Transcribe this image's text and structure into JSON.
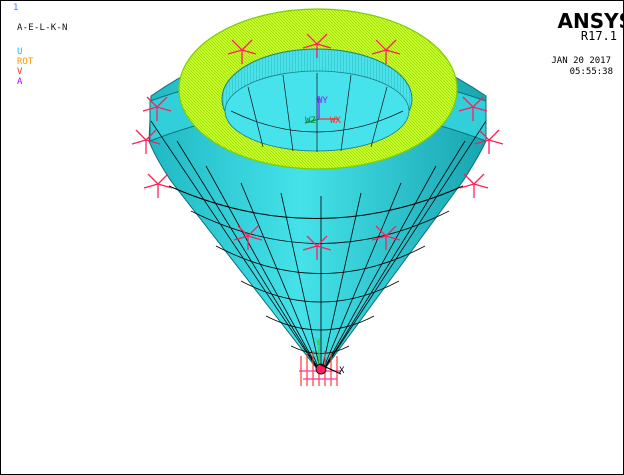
{
  "window": {
    "number": "1",
    "plot_title": "A-E-L-K-N"
  },
  "legend": [
    {
      "label": "U",
      "color": "#00c8ff"
    },
    {
      "label": "ROT",
      "color": "#ff9a00"
    },
    {
      "label": "V",
      "color": "#ff2a2a"
    },
    {
      "label": "A",
      "color": "#b000ff"
    }
  ],
  "brand": {
    "name": "ANSYS",
    "version": "R17.1"
  },
  "timestamp": {
    "date": "JAN 20 2017",
    "time": "05:55:38"
  },
  "triad": {
    "top_y": "WY",
    "top_x": "WX",
    "top_z": "WZ",
    "bottom_y": "Y",
    "bottom_x": "X"
  },
  "colors": {
    "model_fill": "#34d6e0",
    "model_dark": "#1aa9b5",
    "load_ring": "#c8ff2a",
    "mesh_lines": "#000000",
    "constraint_markers": "#ff1f5a"
  }
}
